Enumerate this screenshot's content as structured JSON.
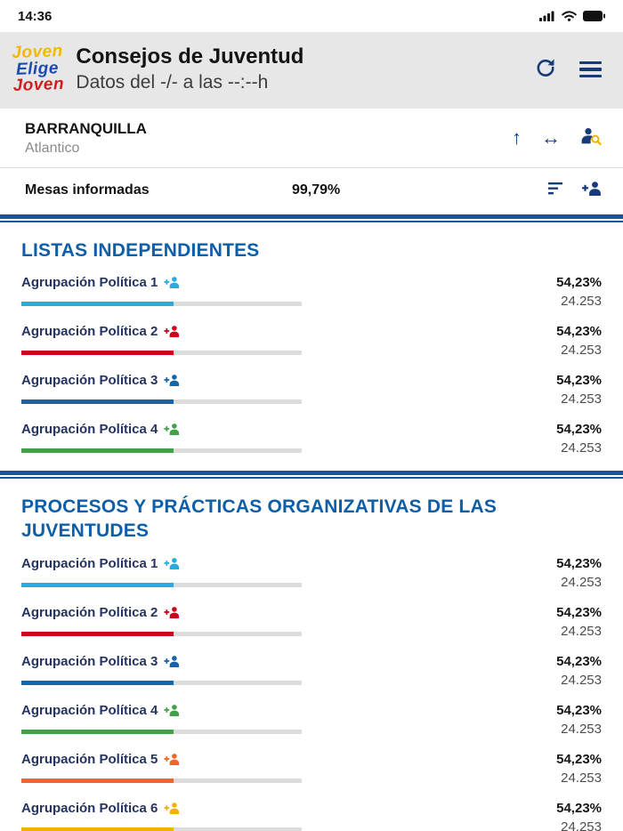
{
  "status_bar": {
    "time": "14:36"
  },
  "header": {
    "logo": {
      "line1": "Joven",
      "line2": "Elige",
      "line3": "Joven"
    },
    "title": "Consejos de Juventud",
    "subtitle": "Datos del -/- a las --:--h"
  },
  "location": {
    "city": "BARRANQUILLA",
    "department": "Atlantico",
    "up_arrow_glyph": "↑",
    "resize_arrow_glyph": "↔"
  },
  "mesas": {
    "label": "Mesas informadas",
    "value": "99,79%"
  },
  "colors": {
    "navy": "#173a7a",
    "divider_blue": "#1f4fa0",
    "section_title_blue": "#0e5ea8",
    "magnifier_yellow": "#f0b400"
  },
  "sections": [
    {
      "title": "LISTAS INDEPENDIENTES",
      "items": [
        {
          "name": "Agrupación Política 1",
          "color": "#29abe2",
          "percent": "54,23%",
          "votes": "24.253",
          "bar_percent": 54.23
        },
        {
          "name": "Agrupación Política 2",
          "color": "#d0021b",
          "percent": "54,23%",
          "votes": "24.253",
          "bar_percent": 54.23
        },
        {
          "name": "Agrupación Política 3",
          "color": "#1565a7",
          "percent": "54,23%",
          "votes": "24.253",
          "bar_percent": 54.23
        },
        {
          "name": "Agrupación Política 4",
          "color": "#43a047",
          "percent": "54,23%",
          "votes": "24.253",
          "bar_percent": 54.23
        }
      ]
    },
    {
      "title": "PROCESOS Y PRÁCTICAS ORGANIZATIVAS DE LAS JUVENTUDES",
      "items": [
        {
          "name": "Agrupación Política 1",
          "color": "#29abe2",
          "percent": "54,23%",
          "votes": "24.253",
          "bar_percent": 54.23
        },
        {
          "name": "Agrupación Política 2",
          "color": "#d0021b",
          "percent": "54,23%",
          "votes": "24.253",
          "bar_percent": 54.23
        },
        {
          "name": "Agrupación Política 3",
          "color": "#1565a7",
          "percent": "54,23%",
          "votes": "24.253",
          "bar_percent": 54.23
        },
        {
          "name": "Agrupación Política 4",
          "color": "#43a047",
          "percent": "54,23%",
          "votes": "24.253",
          "bar_percent": 54.23
        },
        {
          "name": "Agrupación Política 5",
          "color": "#f26522",
          "percent": "54,23%",
          "votes": "24.253",
          "bar_percent": 54.23
        },
        {
          "name": "Agrupación Política 6",
          "color": "#f0b400",
          "percent": "54,23%",
          "votes": "24.253",
          "bar_percent": 54.23
        }
      ]
    }
  ]
}
